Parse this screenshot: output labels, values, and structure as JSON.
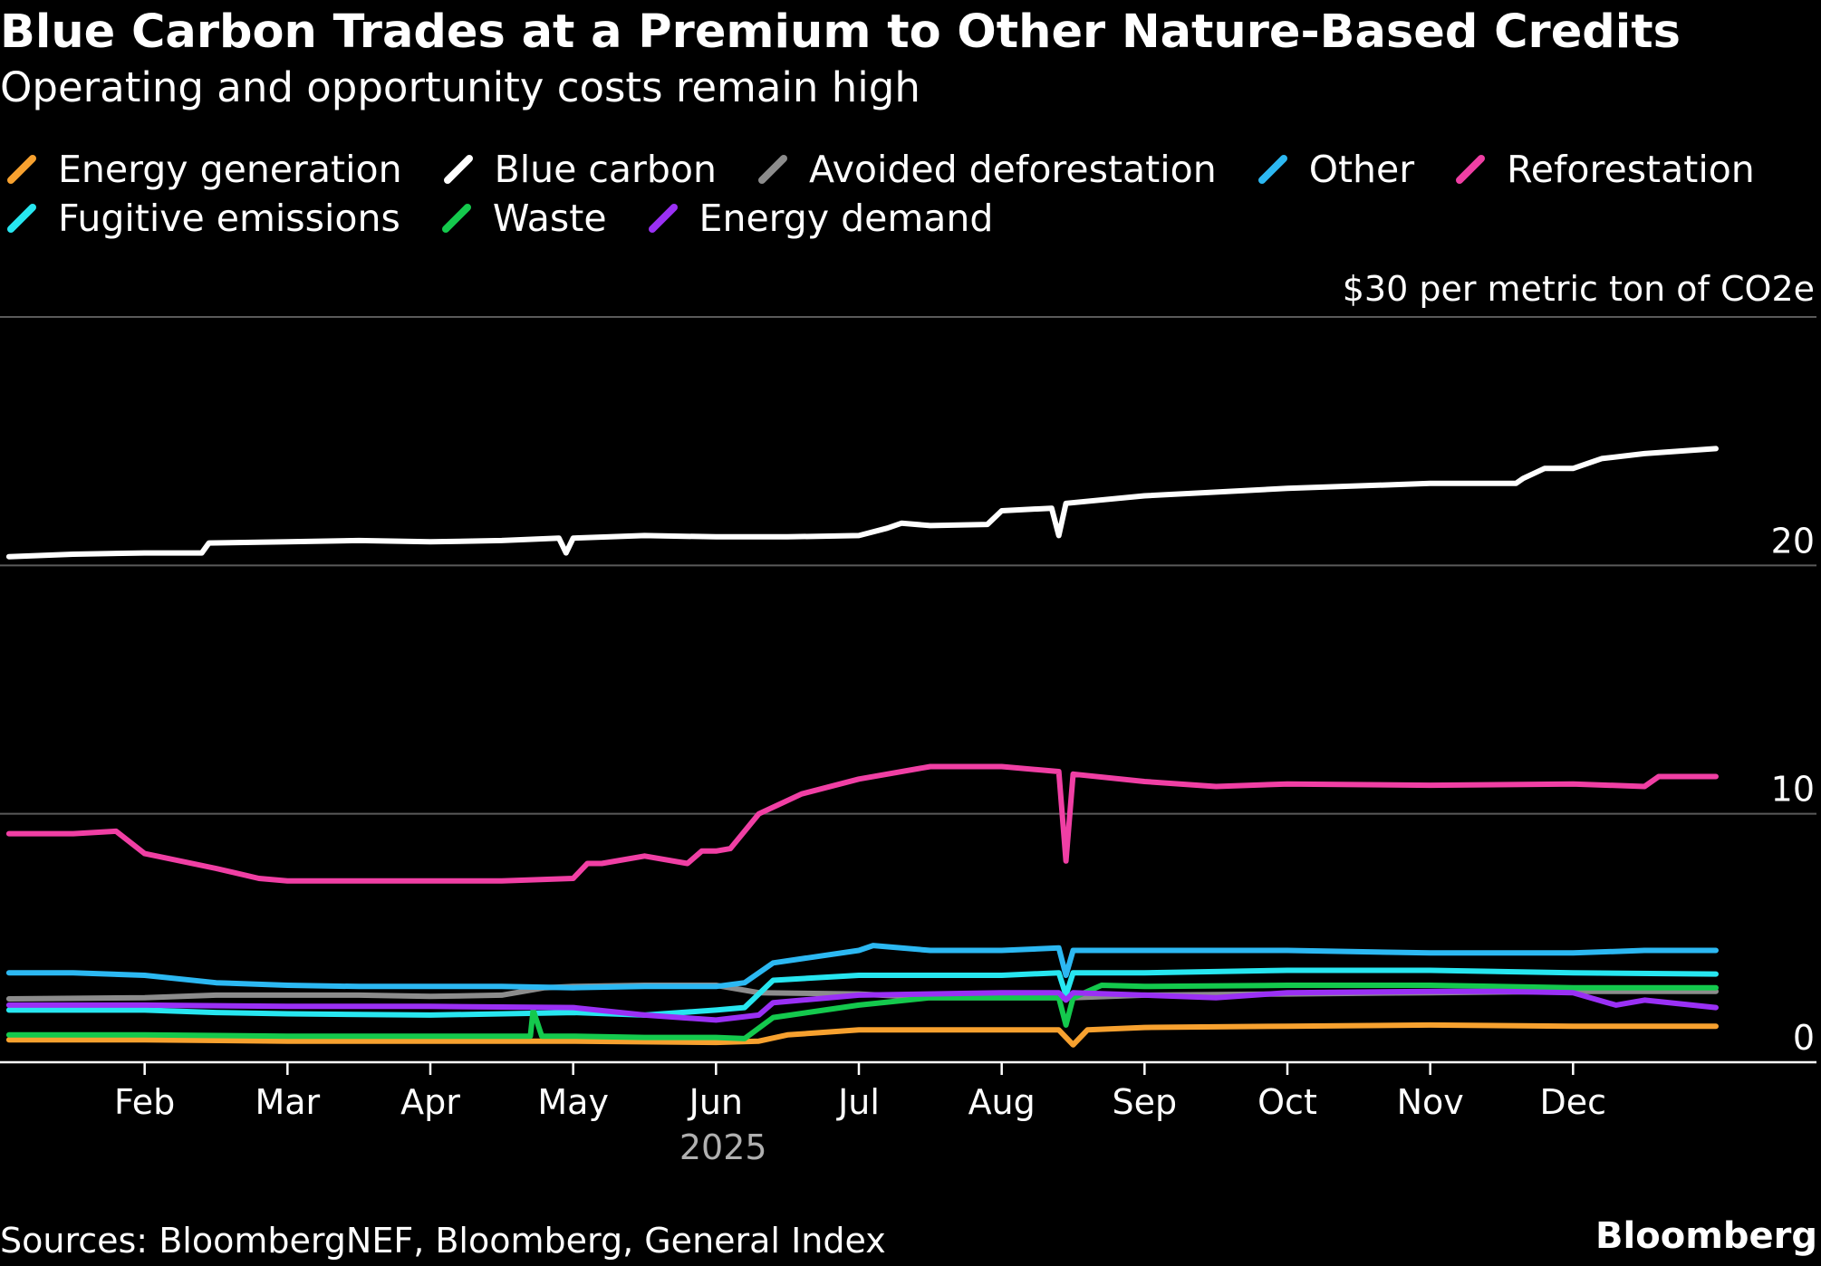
{
  "header": {
    "title": "Blue Carbon Trades at a Premium to Other Nature-Based Credits",
    "subtitle": "Operating and opportunity costs remain high"
  },
  "footer": {
    "source": "Sources: BloombergNEF, Bloomberg, General Index",
    "brand": "Bloomberg"
  },
  "chart_data": {
    "type": "line",
    "title": "Blue Carbon Trades at a Premium to Other Nature-Based Credits",
    "subtitle": "Operating and opportunity costs remain high",
    "ylabel": "$30 per metric ton of CO2e",
    "xlabel": "2025",
    "ylim": [
      0,
      30
    ],
    "yticks": [
      0,
      10,
      20
    ],
    "ytick_labels": [
      "0",
      "10",
      "20"
    ],
    "xlim": [
      0,
      12.0
    ],
    "x_unit": "months since Jan 1 2025",
    "x_ticks": [
      1,
      2,
      3,
      4,
      5,
      6,
      7,
      8,
      9,
      10,
      11
    ],
    "x_tick_labels": [
      "Feb",
      "Mar",
      "Apr",
      "May",
      "Jun",
      "Jul",
      "Aug",
      "Sep",
      "Oct",
      "Nov",
      "Dec"
    ],
    "year_label": "2025",
    "grid": true,
    "legend_position": "top",
    "series": [
      {
        "name": "Energy generation",
        "color": "#f7a12f",
        "x": [
          0.05,
          1.0,
          2.0,
          3.0,
          4.0,
          5.0,
          5.3,
          5.5,
          6.0,
          7.0,
          7.4,
          7.5,
          7.6,
          8.0,
          9.0,
          10.0,
          11.0,
          12.0
        ],
        "y": [
          0.9,
          0.9,
          0.85,
          0.85,
          0.85,
          0.8,
          0.85,
          1.1,
          1.3,
          1.3,
          1.3,
          0.7,
          1.3,
          1.4,
          1.45,
          1.5,
          1.45,
          1.45
        ]
      },
      {
        "name": "Blue carbon",
        "color": "#ffffff",
        "x": [
          0.05,
          0.5,
          1.0,
          1.4,
          1.45,
          2.0,
          2.5,
          3.0,
          3.5,
          3.9,
          3.95,
          4.0,
          4.5,
          5.0,
          5.5,
          6.0,
          6.2,
          6.3,
          6.5,
          6.9,
          7.0,
          7.35,
          7.4,
          7.45,
          8.0,
          9.0,
          10.0,
          10.6,
          10.65,
          10.8,
          11.0,
          11.2,
          11.5,
          12.0
        ],
        "y": [
          20.35,
          20.45,
          20.5,
          20.5,
          20.9,
          20.95,
          21.0,
          20.95,
          21.0,
          21.1,
          20.5,
          21.1,
          21.2,
          21.15,
          21.15,
          21.2,
          21.5,
          21.7,
          21.6,
          21.65,
          22.2,
          22.3,
          21.2,
          22.5,
          22.8,
          23.1,
          23.3,
          23.3,
          23.5,
          23.9,
          23.9,
          24.3,
          24.5,
          24.7
        ]
      },
      {
        "name": "Avoided deforestation",
        "color": "#8c8c8c",
        "x": [
          0.05,
          1.0,
          1.5,
          2.0,
          2.5,
          3.0,
          3.5,
          3.8,
          4.0,
          4.5,
          5.0,
          5.3,
          6.0,
          6.5,
          7.0,
          7.5,
          8.0,
          9.0,
          10.0,
          11.0,
          12.0
        ],
        "y": [
          2.55,
          2.6,
          2.7,
          2.7,
          2.7,
          2.65,
          2.7,
          3.0,
          3.05,
          3.1,
          3.1,
          2.8,
          2.75,
          2.6,
          2.6,
          2.6,
          2.7,
          2.75,
          2.8,
          2.85,
          2.85
        ]
      },
      {
        "name": "Other",
        "color": "#2cb8f2",
        "x": [
          0.05,
          0.5,
          1.0,
          1.5,
          2.0,
          2.5,
          3.0,
          3.5,
          4.0,
          4.5,
          5.0,
          5.2,
          5.4,
          6.0,
          6.1,
          6.5,
          7.0,
          7.4,
          7.45,
          7.5,
          8.0,
          9.0,
          10.0,
          11.0,
          11.5,
          12.0
        ],
        "y": [
          3.6,
          3.6,
          3.5,
          3.2,
          3.1,
          3.05,
          3.05,
          3.05,
          3.0,
          3.05,
          3.05,
          3.2,
          4.0,
          4.5,
          4.7,
          4.5,
          4.5,
          4.6,
          3.5,
          4.5,
          4.5,
          4.5,
          4.4,
          4.4,
          4.5,
          4.5
        ]
      },
      {
        "name": "Reforestation",
        "color": "#f03fa4",
        "x": [
          0.05,
          0.5,
          0.8,
          1.0,
          1.5,
          1.8,
          2.0,
          2.1,
          2.2,
          2.5,
          3.0,
          3.5,
          4.0,
          4.1,
          4.2,
          4.5,
          4.8,
          4.9,
          5.0,
          5.1,
          5.3,
          5.6,
          6.0,
          6.5,
          6.8,
          7.0,
          7.4,
          7.45,
          7.5,
          8.0,
          8.5,
          9.0,
          10.0,
          11.0,
          11.5,
          11.6,
          12.0
        ],
        "y": [
          9.2,
          9.2,
          9.3,
          8.4,
          7.8,
          7.4,
          7.3,
          7.3,
          7.3,
          7.3,
          7.3,
          7.3,
          7.4,
          8.0,
          8.0,
          8.3,
          8.0,
          8.5,
          8.5,
          8.6,
          10.0,
          10.8,
          11.4,
          11.9,
          11.9,
          11.9,
          11.7,
          8.1,
          11.6,
          11.3,
          11.1,
          11.2,
          11.15,
          11.2,
          11.1,
          11.5,
          11.5
        ]
      },
      {
        "name": "Fugitive emissions",
        "color": "#27e6f0",
        "x": [
          0.05,
          0.5,
          1.0,
          1.5,
          2.0,
          3.0,
          4.0,
          4.5,
          5.0,
          5.2,
          5.4,
          6.0,
          7.0,
          7.4,
          7.45,
          7.5,
          8.0,
          9.0,
          10.0,
          11.0,
          12.0
        ],
        "y": [
          2.1,
          2.1,
          2.1,
          2.0,
          1.95,
          1.9,
          2.0,
          1.9,
          2.1,
          2.2,
          3.3,
          3.5,
          3.5,
          3.6,
          2.7,
          3.6,
          3.6,
          3.7,
          3.7,
          3.6,
          3.55
        ]
      },
      {
        "name": "Waste",
        "color": "#14c94d",
        "x": [
          0.05,
          0.5,
          1.0,
          2.0,
          3.0,
          3.7,
          3.72,
          3.78,
          4.0,
          4.5,
          5.0,
          5.2,
          5.4,
          6.0,
          6.5,
          7.0,
          7.4,
          7.45,
          7.5,
          7.7,
          8.0,
          9.0,
          10.0,
          11.0,
          12.0
        ],
        "y": [
          1.1,
          1.1,
          1.1,
          1.05,
          1.05,
          1.05,
          2.1,
          1.05,
          1.05,
          1.0,
          1.0,
          0.95,
          1.8,
          2.3,
          2.6,
          2.6,
          2.6,
          1.5,
          2.6,
          3.1,
          3.05,
          3.1,
          3.1,
          3.0,
          3.0
        ]
      },
      {
        "name": "Energy demand",
        "color": "#9a30f5",
        "x": [
          0.05,
          1.0,
          2.0,
          3.0,
          4.0,
          4.5,
          5.0,
          5.3,
          5.4,
          6.0,
          7.0,
          7.4,
          7.45,
          7.5,
          8.0,
          8.5,
          9.0,
          10.0,
          10.5,
          11.0,
          11.3,
          11.5,
          12.0
        ],
        "y": [
          2.3,
          2.3,
          2.25,
          2.25,
          2.2,
          1.9,
          1.7,
          1.9,
          2.4,
          2.7,
          2.8,
          2.8,
          2.5,
          2.8,
          2.7,
          2.6,
          2.8,
          2.85,
          2.85,
          2.8,
          2.3,
          2.5,
          2.2
        ]
      }
    ]
  }
}
